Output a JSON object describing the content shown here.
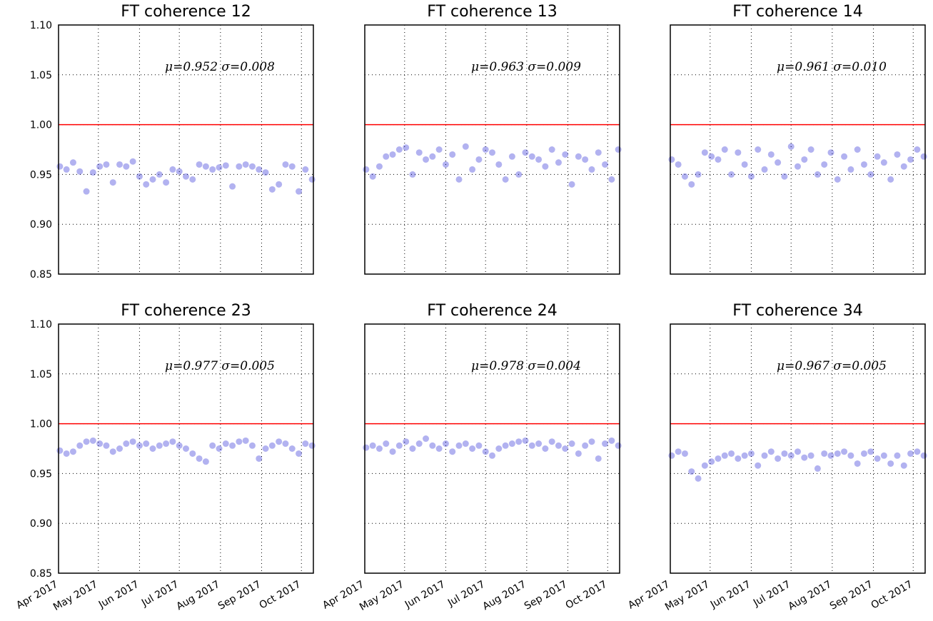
{
  "chart_data": [
    {
      "type": "scatter",
      "title": "FT coherence 12",
      "annotation": "μ=0.952 σ=0.008",
      "color": "#0000cc",
      "x": [
        1,
        6,
        11,
        16,
        21,
        26,
        31,
        36,
        41,
        46,
        51,
        56,
        61,
        66,
        71,
        76,
        81,
        86,
        91,
        96,
        101,
        106,
        111,
        116,
        121,
        126,
        131,
        136,
        141,
        146,
        151,
        156,
        161,
        166,
        171,
        176,
        181,
        186,
        191
      ],
      "values": [
        0.958,
        0.955,
        0.962,
        0.953,
        0.933,
        0.952,
        0.958,
        0.96,
        0.942,
        0.96,
        0.958,
        0.963,
        0.948,
        0.94,
        0.945,
        0.95,
        0.942,
        0.955,
        0.953,
        0.948,
        0.945,
        0.96,
        0.958,
        0.955,
        0.957,
        0.959,
        0.938,
        0.958,
        0.96,
        0.958,
        0.955,
        0.952,
        0.935,
        0.94,
        0.96,
        0.958,
        0.933,
        0.955,
        0.945
      ],
      "xlim": [
        0,
        192
      ],
      "xticks": [
        0,
        30,
        61,
        91,
        122,
        153,
        183
      ],
      "ylim": [
        0.85,
        1.1
      ],
      "yticks": [
        {
          "value": 0.85,
          "label": "0.85"
        },
        {
          "value": 0.9,
          "label": "0.90"
        },
        {
          "value": 0.95,
          "label": "0.95"
        },
        {
          "value": 1.0,
          "label": "1.00"
        },
        {
          "value": 1.05,
          "label": "1.05"
        },
        {
          "value": 1.1,
          "label": "1.10"
        }
      ],
      "grid": true,
      "reference_line": {
        "value": 1.0,
        "color": "#ff0000"
      }
    },
    {
      "type": "scatter",
      "title": "FT coherence 13",
      "annotation": "μ=0.963 σ=0.009",
      "color": "#0000cc",
      "x": [
        1,
        6,
        11,
        16,
        21,
        26,
        31,
        36,
        41,
        46,
        51,
        56,
        61,
        66,
        71,
        76,
        81,
        86,
        91,
        96,
        101,
        106,
        111,
        116,
        121,
        126,
        131,
        136,
        141,
        146,
        151,
        156,
        161,
        166,
        171,
        176,
        181,
        186,
        191
      ],
      "values": [
        0.955,
        0.948,
        0.958,
        0.968,
        0.97,
        0.975,
        0.977,
        0.95,
        0.972,
        0.965,
        0.968,
        0.975,
        0.96,
        0.97,
        0.945,
        0.978,
        0.955,
        0.965,
        0.975,
        0.972,
        0.96,
        0.945,
        0.968,
        0.95,
        0.972,
        0.968,
        0.965,
        0.958,
        0.975,
        0.962,
        0.97,
        0.94,
        0.968,
        0.965,
        0.955,
        0.972,
        0.96,
        0.945,
        0.975
      ],
      "xlim": [
        0,
        192
      ],
      "xticks": [
        0,
        30,
        61,
        91,
        122,
        153,
        183
      ],
      "ylim": [
        0.85,
        1.1
      ],
      "yticks": [
        0.85,
        0.9,
        0.95,
        1.0,
        1.05,
        1.1
      ],
      "grid": true,
      "reference_line": {
        "value": 1.0,
        "color": "#ff0000"
      }
    },
    {
      "type": "scatter",
      "title": "FT coherence 14",
      "annotation": "μ=0.961 σ=0.010",
      "color": "#0000cc",
      "x": [
        1,
        6,
        11,
        16,
        21,
        26,
        31,
        36,
        41,
        46,
        51,
        56,
        61,
        66,
        71,
        76,
        81,
        86,
        91,
        96,
        101,
        106,
        111,
        116,
        121,
        126,
        131,
        136,
        141,
        146,
        151,
        156,
        161,
        166,
        171,
        176,
        181,
        186,
        191
      ],
      "values": [
        0.965,
        0.96,
        0.948,
        0.94,
        0.95,
        0.972,
        0.968,
        0.965,
        0.975,
        0.95,
        0.972,
        0.96,
        0.948,
        0.975,
        0.955,
        0.97,
        0.962,
        0.948,
        0.978,
        0.958,
        0.965,
        0.975,
        0.95,
        0.96,
        0.972,
        0.945,
        0.968,
        0.955,
        0.975,
        0.96,
        0.95,
        0.968,
        0.962,
        0.945,
        0.97,
        0.958,
        0.965,
        0.975,
        0.968
      ],
      "xlim": [
        0,
        192
      ],
      "xticks": [
        0,
        30,
        61,
        91,
        122,
        153,
        183
      ],
      "ylim": [
        0.85,
        1.1
      ],
      "yticks": [
        0.85,
        0.9,
        0.95,
        1.0,
        1.05,
        1.1
      ],
      "grid": true,
      "reference_line": {
        "value": 1.0,
        "color": "#ff0000"
      }
    },
    {
      "type": "scatter",
      "title": "FT coherence 23",
      "annotation": "μ=0.977 σ=0.005",
      "color": "#0000cc",
      "x": [
        1,
        6,
        11,
        16,
        21,
        26,
        31,
        36,
        41,
        46,
        51,
        56,
        61,
        66,
        71,
        76,
        81,
        86,
        91,
        96,
        101,
        106,
        111,
        116,
        121,
        126,
        131,
        136,
        141,
        146,
        151,
        156,
        161,
        166,
        171,
        176,
        181,
        186,
        191
      ],
      "values": [
        0.973,
        0.97,
        0.972,
        0.978,
        0.982,
        0.983,
        0.98,
        0.978,
        0.972,
        0.975,
        0.98,
        0.982,
        0.978,
        0.98,
        0.975,
        0.978,
        0.98,
        0.982,
        0.978,
        0.975,
        0.97,
        0.965,
        0.962,
        0.978,
        0.975,
        0.98,
        0.978,
        0.982,
        0.983,
        0.978,
        0.965,
        0.975,
        0.978,
        0.982,
        0.98,
        0.975,
        0.97,
        0.98,
        0.978
      ],
      "xlim": [
        0,
        192
      ],
      "xticks": [
        {
          "value": 0,
          "label": "Apr 2017"
        },
        {
          "value": 30,
          "label": "May 2017"
        },
        {
          "value": 61,
          "label": "Jun 2017"
        },
        {
          "value": 91,
          "label": "Jul 2017"
        },
        {
          "value": 122,
          "label": "Aug 2017"
        },
        {
          "value": 153,
          "label": "Sep 2017"
        },
        {
          "value": 183,
          "label": "Oct 2017"
        }
      ],
      "ylim": [
        0.85,
        1.1
      ],
      "yticks": [
        {
          "value": 0.85,
          "label": "0.85"
        },
        {
          "value": 0.9,
          "label": "0.90"
        },
        {
          "value": 0.95,
          "label": "0.95"
        },
        {
          "value": 1.0,
          "label": "1.00"
        },
        {
          "value": 1.05,
          "label": "1.05"
        },
        {
          "value": 1.1,
          "label": "1.10"
        }
      ],
      "grid": true,
      "reference_line": {
        "value": 1.0,
        "color": "#ff0000"
      }
    },
    {
      "type": "scatter",
      "title": "FT coherence 24",
      "annotation": "μ=0.978 σ=0.004",
      "color": "#0000cc",
      "x": [
        1,
        6,
        11,
        16,
        21,
        26,
        31,
        36,
        41,
        46,
        51,
        56,
        61,
        66,
        71,
        76,
        81,
        86,
        91,
        96,
        101,
        106,
        111,
        116,
        121,
        126,
        131,
        136,
        141,
        146,
        151,
        156,
        161,
        166,
        171,
        176,
        181,
        186,
        191
      ],
      "values": [
        0.976,
        0.978,
        0.975,
        0.98,
        0.972,
        0.978,
        0.982,
        0.975,
        0.98,
        0.985,
        0.978,
        0.975,
        0.98,
        0.972,
        0.978,
        0.98,
        0.975,
        0.978,
        0.972,
        0.968,
        0.975,
        0.978,
        0.98,
        0.982,
        0.983,
        0.978,
        0.98,
        0.975,
        0.982,
        0.978,
        0.975,
        0.98,
        0.97,
        0.978,
        0.982,
        0.965,
        0.98,
        0.983,
        0.978
      ],
      "xlim": [
        0,
        192
      ],
      "xticks": [
        {
          "value": 0,
          "label": "Apr 2017"
        },
        {
          "value": 30,
          "label": "May 2017"
        },
        {
          "value": 61,
          "label": "Jun 2017"
        },
        {
          "value": 91,
          "label": "Jul 2017"
        },
        {
          "value": 122,
          "label": "Aug 2017"
        },
        {
          "value": 153,
          "label": "Sep 2017"
        },
        {
          "value": 183,
          "label": "Oct 2017"
        }
      ],
      "ylim": [
        0.85,
        1.1
      ],
      "yticks": [
        0.85,
        0.9,
        0.95,
        1.0,
        1.05,
        1.1
      ],
      "grid": true,
      "reference_line": {
        "value": 1.0,
        "color": "#ff0000"
      }
    },
    {
      "type": "scatter",
      "title": "FT coherence 34",
      "annotation": "μ=0.967 σ=0.005",
      "color": "#0000cc",
      "x": [
        1,
        6,
        11,
        16,
        21,
        26,
        31,
        36,
        41,
        46,
        51,
        56,
        61,
        66,
        71,
        76,
        81,
        86,
        91,
        96,
        101,
        106,
        111,
        116,
        121,
        126,
        131,
        136,
        141,
        146,
        151,
        156,
        161,
        166,
        171,
        176,
        181,
        186,
        191
      ],
      "values": [
        0.968,
        0.972,
        0.97,
        0.952,
        0.945,
        0.958,
        0.962,
        0.965,
        0.968,
        0.97,
        0.965,
        0.968,
        0.97,
        0.958,
        0.968,
        0.972,
        0.965,
        0.97,
        0.968,
        0.972,
        0.966,
        0.968,
        0.955,
        0.97,
        0.968,
        0.97,
        0.972,
        0.968,
        0.96,
        0.97,
        0.972,
        0.965,
        0.968,
        0.96,
        0.968,
        0.958,
        0.97,
        0.972,
        0.968
      ],
      "xlim": [
        0,
        192
      ],
      "xticks": [
        {
          "value": 0,
          "label": "Apr 2017"
        },
        {
          "value": 30,
          "label": "May 2017"
        },
        {
          "value": 61,
          "label": "Jun 2017"
        },
        {
          "value": 91,
          "label": "Jul 2017"
        },
        {
          "value": 122,
          "label": "Aug 2017"
        },
        {
          "value": 153,
          "label": "Sep 2017"
        },
        {
          "value": 183,
          "label": "Oct 2017"
        }
      ],
      "ylim": [
        0.85,
        1.1
      ],
      "yticks": [
        0.85,
        0.9,
        0.95,
        1.0,
        1.05,
        1.1
      ],
      "grid": true,
      "reference_line": {
        "value": 1.0,
        "color": "#ff0000"
      }
    }
  ]
}
